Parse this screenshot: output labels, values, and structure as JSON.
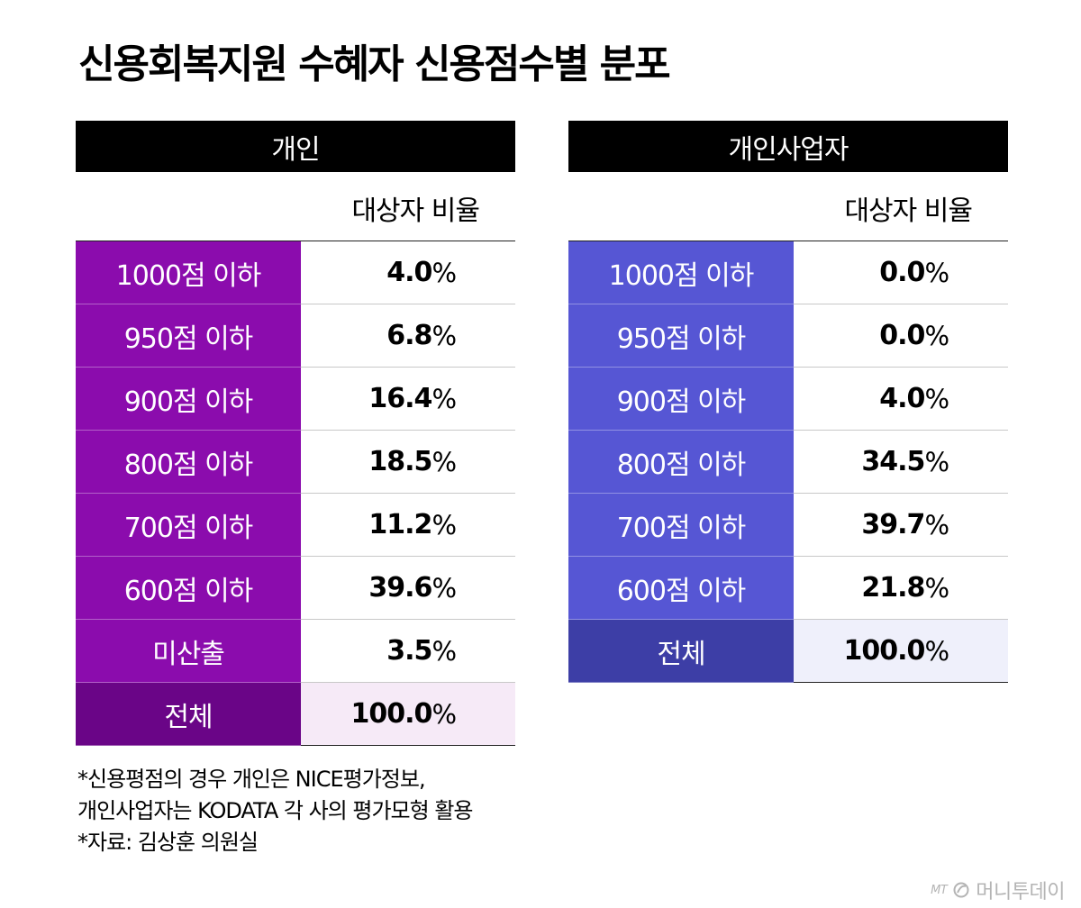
{
  "title": "신용회복지원 수혜자 신용점수별 분포",
  "column_header": "대상자 비율",
  "individual": {
    "header": "개인",
    "rows": [
      {
        "label": "1000점 이하",
        "value": "4.0",
        "unit": "%"
      },
      {
        "label": "950점 이하",
        "value": "6.8",
        "unit": "%"
      },
      {
        "label": "900점 이하",
        "value": "16.4",
        "unit": "%"
      },
      {
        "label": "800점 이하",
        "value": "18.5",
        "unit": "%"
      },
      {
        "label": "700점 이하",
        "value": "11.2",
        "unit": "%"
      },
      {
        "label": "600점 이하",
        "value": "39.6",
        "unit": "%"
      },
      {
        "label": "미산출",
        "value": "3.5",
        "unit": "%"
      },
      {
        "label": "전체",
        "value": "100.0",
        "unit": "%"
      }
    ]
  },
  "business": {
    "header": "개인사업자",
    "rows": [
      {
        "label": "1000점 이하",
        "value": "0.0",
        "unit": "%"
      },
      {
        "label": "950점 이하",
        "value": "0.0",
        "unit": "%"
      },
      {
        "label": "900점 이하",
        "value": "4.0",
        "unit": "%"
      },
      {
        "label": "800점 이하",
        "value": "34.5",
        "unit": "%"
      },
      {
        "label": "700점 이하",
        "value": "39.7",
        "unit": "%"
      },
      {
        "label": "600점 이하",
        "value": "21.8",
        "unit": "%"
      },
      {
        "label": "전체",
        "value": "100.0",
        "unit": "%"
      }
    ]
  },
  "notes": [
    "*신용평점의 경우 개인은 NICE평가정보,",
    "개인사업자는 KODATA 각 사의 평가모형 활용",
    "*자료: 김상훈 의원실"
  ],
  "brand": {
    "mark": "MT",
    "name": "머니투데이"
  },
  "colors": {
    "individual_label": "#8b0cad",
    "individual_total": "#6a0587",
    "business_label": "#5656d4",
    "business_total": "#3d3ea6"
  },
  "chart_data": [
    {
      "type": "table",
      "title": "개인",
      "columns": [
        "",
        "대상자 비율"
      ],
      "categories": [
        "1000점 이하",
        "950점 이하",
        "900점 이하",
        "800점 이하",
        "700점 이하",
        "600점 이하",
        "미산출",
        "전체"
      ],
      "values": [
        4.0,
        6.8,
        16.4,
        18.5,
        11.2,
        39.6,
        3.5,
        100.0
      ],
      "unit": "%"
    },
    {
      "type": "table",
      "title": "개인사업자",
      "columns": [
        "",
        "대상자 비율"
      ],
      "categories": [
        "1000점 이하",
        "950점 이하",
        "900점 이하",
        "800점 이하",
        "700점 이하",
        "600점 이하",
        "전체"
      ],
      "values": [
        0.0,
        0.0,
        4.0,
        34.5,
        39.7,
        21.8,
        100.0
      ],
      "unit": "%"
    }
  ]
}
